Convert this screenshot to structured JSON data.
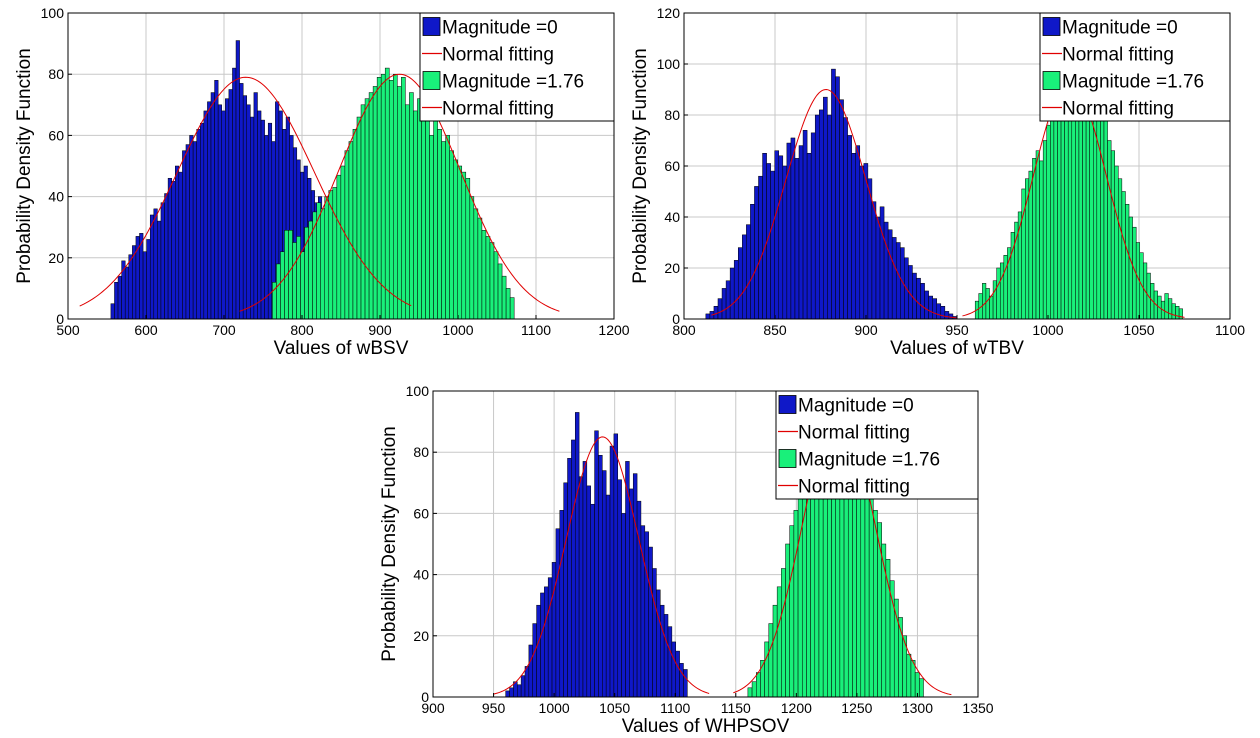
{
  "legend_labels": [
    "Magnitude =0",
    "Normal fitting",
    "Magnitude =1.76",
    "Normal fitting"
  ],
  "colors": {
    "series_a": "#0f18c8",
    "series_b": "#19f07a",
    "fit": "#e00000",
    "grid": "#c8c8c8"
  },
  "chart_data": [
    {
      "type": "bar",
      "xlabel": "Values of wBSV",
      "ylabel": "Probability Density Function",
      "xlim": [
        500,
        1200
      ],
      "ylim": [
        0,
        100
      ],
      "xticks": [
        500,
        600,
        700,
        800,
        900,
        1000,
        1100,
        1200
      ],
      "yticks": [
        0,
        20,
        40,
        60,
        80,
        100
      ],
      "grid": true,
      "legend": "top-right",
      "series": [
        {
          "name": "Magnitude =0",
          "kind": "histogram",
          "range": [
            555,
            830
          ],
          "values": [
            5,
            12,
            14,
            19,
            17,
            21,
            24,
            27,
            28,
            22,
            26,
            34,
            36,
            32,
            38,
            41,
            46,
            45,
            50,
            48,
            55,
            57,
            60,
            58,
            62,
            64,
            68,
            71,
            74,
            78,
            70,
            68,
            72,
            75,
            82,
            91,
            77,
            73,
            70,
            66,
            74,
            68,
            65,
            60,
            64,
            58,
            71,
            68,
            62,
            66,
            60,
            56,
            52,
            48,
            50,
            46,
            42,
            38,
            40,
            36
          ]
        },
        {
          "name": "Normal fitting",
          "kind": "fit",
          "mu": 728,
          "sigma": 88,
          "peak": 79,
          "range": [
            515,
            940
          ]
        },
        {
          "name": "Magnitude =1.76",
          "kind": "histogram",
          "range": [
            762,
            1072
          ],
          "values": [
            12,
            18,
            22,
            29,
            29,
            25,
            27,
            22,
            30,
            32,
            35,
            38,
            36,
            40,
            42,
            43,
            47,
            50,
            55,
            58,
            62,
            66,
            70,
            72,
            74,
            76,
            79,
            80,
            82,
            78,
            80,
            76,
            79,
            70,
            74,
            68,
            72,
            70,
            65,
            60,
            68,
            62,
            58,
            60,
            55,
            52,
            50,
            48,
            46,
            40,
            36,
            33,
            29,
            27,
            25,
            22,
            18,
            14,
            10,
            7
          ]
        },
        {
          "name": "Normal fitting",
          "kind": "fit",
          "mu": 925,
          "sigma": 78,
          "peak": 80,
          "range": [
            720,
            1130
          ]
        }
      ]
    },
    {
      "type": "bar",
      "xlabel": "Values of wTBV",
      "ylabel": "Probability Density Function",
      "xlim": [
        800,
        1100
      ],
      "ylim": [
        0,
        120
      ],
      "xticks": [
        800,
        850,
        900,
        950,
        1000,
        1050,
        1100
      ],
      "yticks": [
        0,
        20,
        40,
        60,
        80,
        100,
        120
      ],
      "grid": true,
      "legend": "top-right",
      "series": [
        {
          "name": "Magnitude =0",
          "kind": "histogram",
          "range": [
            812,
            950
          ],
          "values": [
            2,
            3,
            5,
            8,
            12,
            15,
            20,
            23,
            28,
            33,
            37,
            45,
            52,
            56,
            65,
            61,
            58,
            66,
            64,
            60,
            69,
            71,
            63,
            68,
            74,
            65,
            73,
            80,
            82,
            87,
            80,
            98,
            95,
            86,
            79,
            72,
            65,
            68,
            60,
            61,
            55,
            46,
            40,
            44,
            38,
            35,
            32,
            30,
            28,
            24,
            21,
            18,
            16,
            14,
            11,
            9,
            8,
            6,
            5,
            3,
            2,
            1
          ]
        },
        {
          "name": "Normal fitting",
          "kind": "fit",
          "mu": 878,
          "sigma": 22,
          "peak": 90,
          "range": [
            815,
            950
          ]
        },
        {
          "name": "Magnitude =1.76",
          "kind": "histogram",
          "range": [
            960,
            1074
          ],
          "values": [
            7,
            10,
            14,
            12,
            9,
            15,
            20,
            22,
            25,
            28,
            34,
            38,
            42,
            51,
            55,
            58,
            63,
            66,
            62,
            70,
            76,
            79,
            83,
            88,
            91,
            94,
            96,
            99,
            95,
            92,
            90,
            86,
            88,
            85,
            80,
            84,
            78,
            70,
            66,
            60,
            55,
            50,
            45,
            40,
            36,
            30,
            26,
            22,
            18,
            14,
            11,
            9,
            7,
            10,
            8,
            6,
            5,
            4
          ]
        },
        {
          "name": "Normal fitting",
          "kind": "fit",
          "mu": 1012,
          "sigma": 20,
          "peak": 93,
          "range": [
            953,
            1075
          ]
        }
      ]
    },
    {
      "type": "bar",
      "xlabel": "Values of WHPSOV",
      "ylabel": "Probability Density Function",
      "xlim": [
        900,
        1350
      ],
      "ylim": [
        0,
        100
      ],
      "xticks": [
        900,
        950,
        1000,
        1050,
        1100,
        1150,
        1200,
        1250,
        1300,
        1350
      ],
      "yticks": [
        0,
        20,
        40,
        60,
        80,
        100
      ],
      "grid": true,
      "legend": "top-right",
      "series": [
        {
          "name": "Magnitude =0",
          "kind": "histogram",
          "range": [
            960,
            1110
          ],
          "values": [
            2,
            3,
            5,
            4,
            7,
            10,
            17,
            24,
            30,
            34,
            36,
            39,
            44,
            55,
            61,
            70,
            78,
            84,
            93,
            72,
            77,
            69,
            63,
            87,
            79,
            74,
            66,
            82,
            86,
            71,
            60,
            77,
            68,
            73,
            64,
            56,
            54,
            49,
            42,
            35,
            30,
            27,
            23,
            18,
            15,
            11,
            9
          ]
        },
        {
          "name": "Normal fitting",
          "kind": "fit",
          "mu": 1040,
          "sigma": 30,
          "peak": 85,
          "range": [
            950,
            1128
          ]
        },
        {
          "name": "Magnitude =1.76",
          "kind": "histogram",
          "range": [
            1160,
            1305
          ],
          "values": [
            3,
            5,
            8,
            12,
            18,
            24,
            30,
            36,
            42,
            50,
            56,
            61,
            66,
            72,
            78,
            75,
            83,
            88,
            92,
            86,
            95,
            90,
            85,
            78,
            92,
            82,
            74,
            80,
            70,
            65,
            61,
            57,
            50,
            45,
            38,
            32,
            26,
            20,
            14,
            12,
            8,
            6
          ]
        },
        {
          "name": "Normal fitting",
          "kind": "fit",
          "mu": 1235,
          "sigma": 30,
          "peak": 93,
          "range": [
            1148,
            1328
          ]
        }
      ]
    }
  ]
}
